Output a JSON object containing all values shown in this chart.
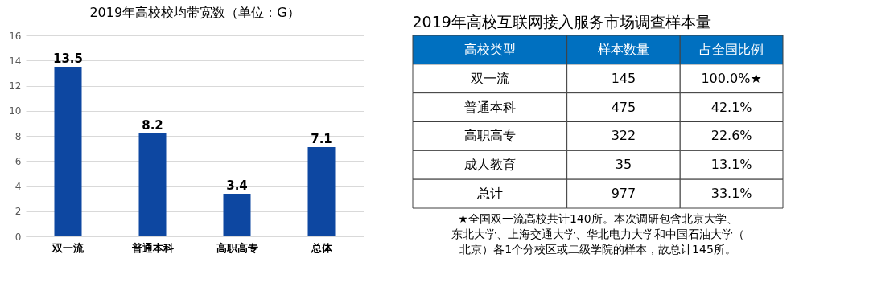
{
  "chart_data": [
    {
      "type": "bar",
      "title": "2019年高校校均带宽数（单位：G）",
      "categories": [
        "双一流",
        "普通本科",
        "高职高专",
        "总体"
      ],
      "values": [
        13.5,
        8.2,
        3.4,
        7.1
      ],
      "color": "#0d47a1",
      "ylim": [
        0,
        16
      ],
      "yticks": [
        0,
        2,
        4,
        6,
        8,
        10,
        12,
        14,
        16
      ],
      "grid": "y",
      "data_labels": true
    },
    {
      "type": "other",
      "title": "2019年高校互联网接入服务市场调查样本量",
      "annotations": [
        "高校类型",
        "样本数量",
        "占全国比例",
        "双一流",
        "145",
        "100.0%★",
        "普通本科",
        "475",
        "42.1%",
        "高职高专",
        "322",
        "22.6%",
        "成人教育",
        "35",
        "13.1%",
        "总计",
        "977",
        "33.1%",
        "★全国双一流高校共计140所。本次调研包含北京大学、东北大学、上海交通大学、华北电力大学和中国石油大学（北京）各1个分校区或二级学院的样本，故总计145所。"
      ]
    }
  ]
}
